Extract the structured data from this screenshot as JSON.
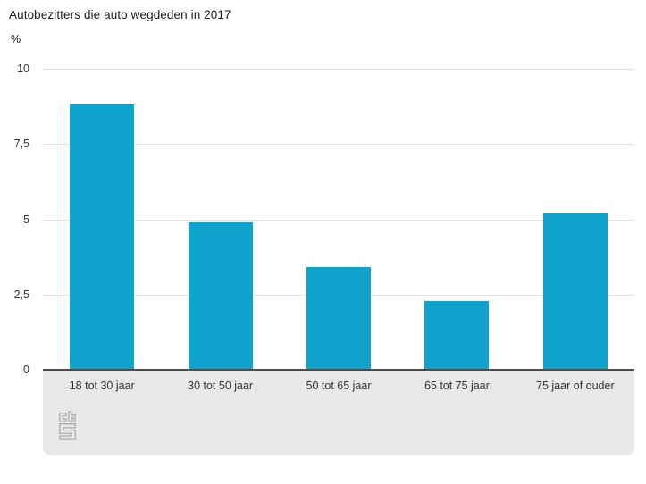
{
  "chart_data": {
    "type": "bar",
    "title": "Autobezitters die auto wegdeden in 2017",
    "unit_label": "%",
    "categories": [
      "18 tot 30 jaar",
      "30 tot 50 jaar",
      "50 tot 65 jaar",
      "65 tot 75 jaar",
      "75 jaar of ouder"
    ],
    "values": [
      8.8,
      4.9,
      3.4,
      2.3,
      5.2
    ],
    "xlabel": "",
    "ylabel": "%",
    "ylim": [
      0,
      10
    ],
    "yticks": [
      0,
      2.5,
      5,
      7.5,
      10
    ],
    "ytick_labels": [
      "0",
      "2,5",
      "5",
      "7,5",
      "10"
    ],
    "grid": true,
    "legend": false,
    "colors": {
      "bar": "#0fa3cd",
      "baseline": "#4c4c4c",
      "gridline": "#dfdfdf",
      "footer_background": "#e8e8e8",
      "text": "#333333",
      "logo_stroke": "#acacac"
    },
    "source_logo": "cbs"
  }
}
